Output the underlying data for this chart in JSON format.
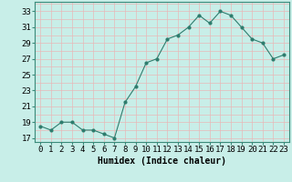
{
  "x": [
    0,
    1,
    2,
    3,
    4,
    5,
    6,
    7,
    8,
    9,
    10,
    11,
    12,
    13,
    14,
    15,
    16,
    17,
    18,
    19,
    20,
    21,
    22,
    23
  ],
  "y": [
    18.5,
    18.0,
    19.0,
    19.0,
    18.0,
    18.0,
    17.5,
    17.0,
    21.5,
    23.5,
    26.5,
    27.0,
    29.5,
    30.0,
    31.0,
    32.5,
    31.5,
    33.0,
    32.5,
    31.0,
    29.5,
    29.0,
    27.0,
    27.5
  ],
  "line_color": "#2E7D6E",
  "marker": "o",
  "marker_size": 2,
  "bg_color": "#C8EEE8",
  "grid_color": "#E8B8B8",
  "xlabel": "Humidex (Indice chaleur)",
  "xlim": [
    -0.5,
    23.5
  ],
  "ylim": [
    16.5,
    34.2
  ],
  "yticks": [
    17,
    19,
    21,
    23,
    25,
    27,
    29,
    31,
    33
  ],
  "xtick_labels": [
    "0",
    "1",
    "2",
    "3",
    "4",
    "5",
    "6",
    "7",
    "8",
    "9",
    "10",
    "11",
    "12",
    "13",
    "14",
    "15",
    "16",
    "17",
    "18",
    "19",
    "20",
    "21",
    "22",
    "23"
  ],
  "xlabel_fontsize": 7,
  "tick_fontsize": 6.5
}
